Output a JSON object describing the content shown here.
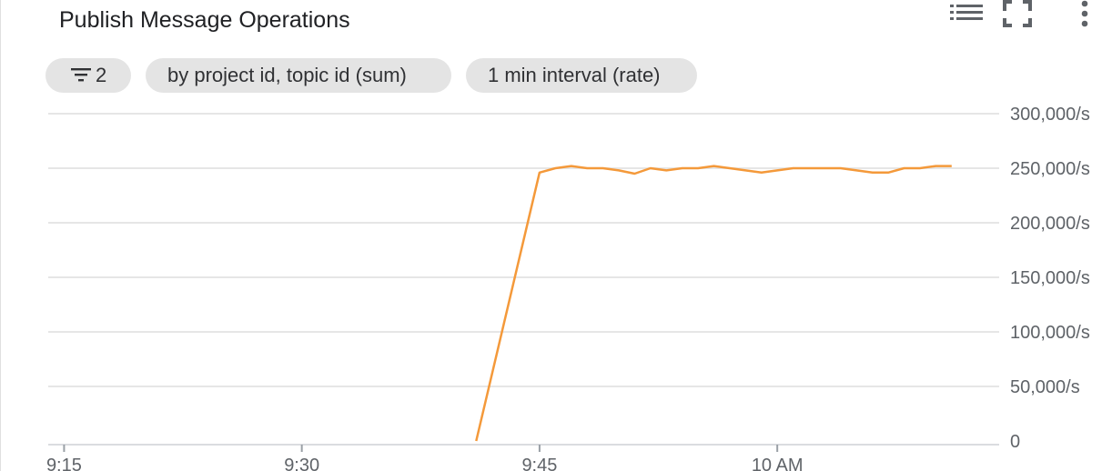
{
  "widget": {
    "title": "Publish Message Operations",
    "toolbar": {
      "legend_icon": "legend-list-icon",
      "fullscreen_icon": "fullscreen-icon",
      "more_icon": "more-vert-icon"
    },
    "chips": {
      "filter_count": "2",
      "filter_icon": "filter-icon",
      "group_by": "by project id, topic id (sum)",
      "interval": "1 min interval (rate)"
    }
  },
  "colors": {
    "series": "#f4993a",
    "grid": "#e6e6e6",
    "chip_bg": "#e4e4e4"
  },
  "chart_data": {
    "type": "line",
    "title": "Publish Message Operations",
    "xlabel": "",
    "ylabel": "",
    "x_ticks": [
      "9:15",
      "9:30",
      "9:45",
      "10 AM"
    ],
    "y_ticks": [
      "0",
      "50,000/s",
      "100,000/s",
      "150,000/s",
      "200,000/s",
      "250,000/s",
      "300,000/s"
    ],
    "xlim": [
      "9:14",
      "10:14"
    ],
    "ylim": [
      0,
      300000
    ],
    "grid": true,
    "legend": "none",
    "series": [
      {
        "x": [
          "9:41",
          "9:45",
          "9:46",
          "9:47",
          "9:48",
          "9:49",
          "9:50",
          "9:51",
          "9:52",
          "9:53",
          "9:54",
          "9:55",
          "9:56",
          "9:57",
          "9:58",
          "9:59",
          "10:00",
          "10:01",
          "10:02",
          "10:03",
          "10:04",
          "10:05",
          "10:06",
          "10:07",
          "10:08",
          "10:09",
          "10:10",
          "10:11"
        ],
        "values": [
          0,
          246000,
          250000,
          252000,
          250000,
          250000,
          248000,
          245000,
          250000,
          248000,
          250000,
          250000,
          252000,
          250000,
          248000,
          246000,
          248000,
          250000,
          250000,
          250000,
          250000,
          248000,
          246000,
          246000,
          250000,
          250000,
          252000,
          252000
        ]
      }
    ]
  }
}
